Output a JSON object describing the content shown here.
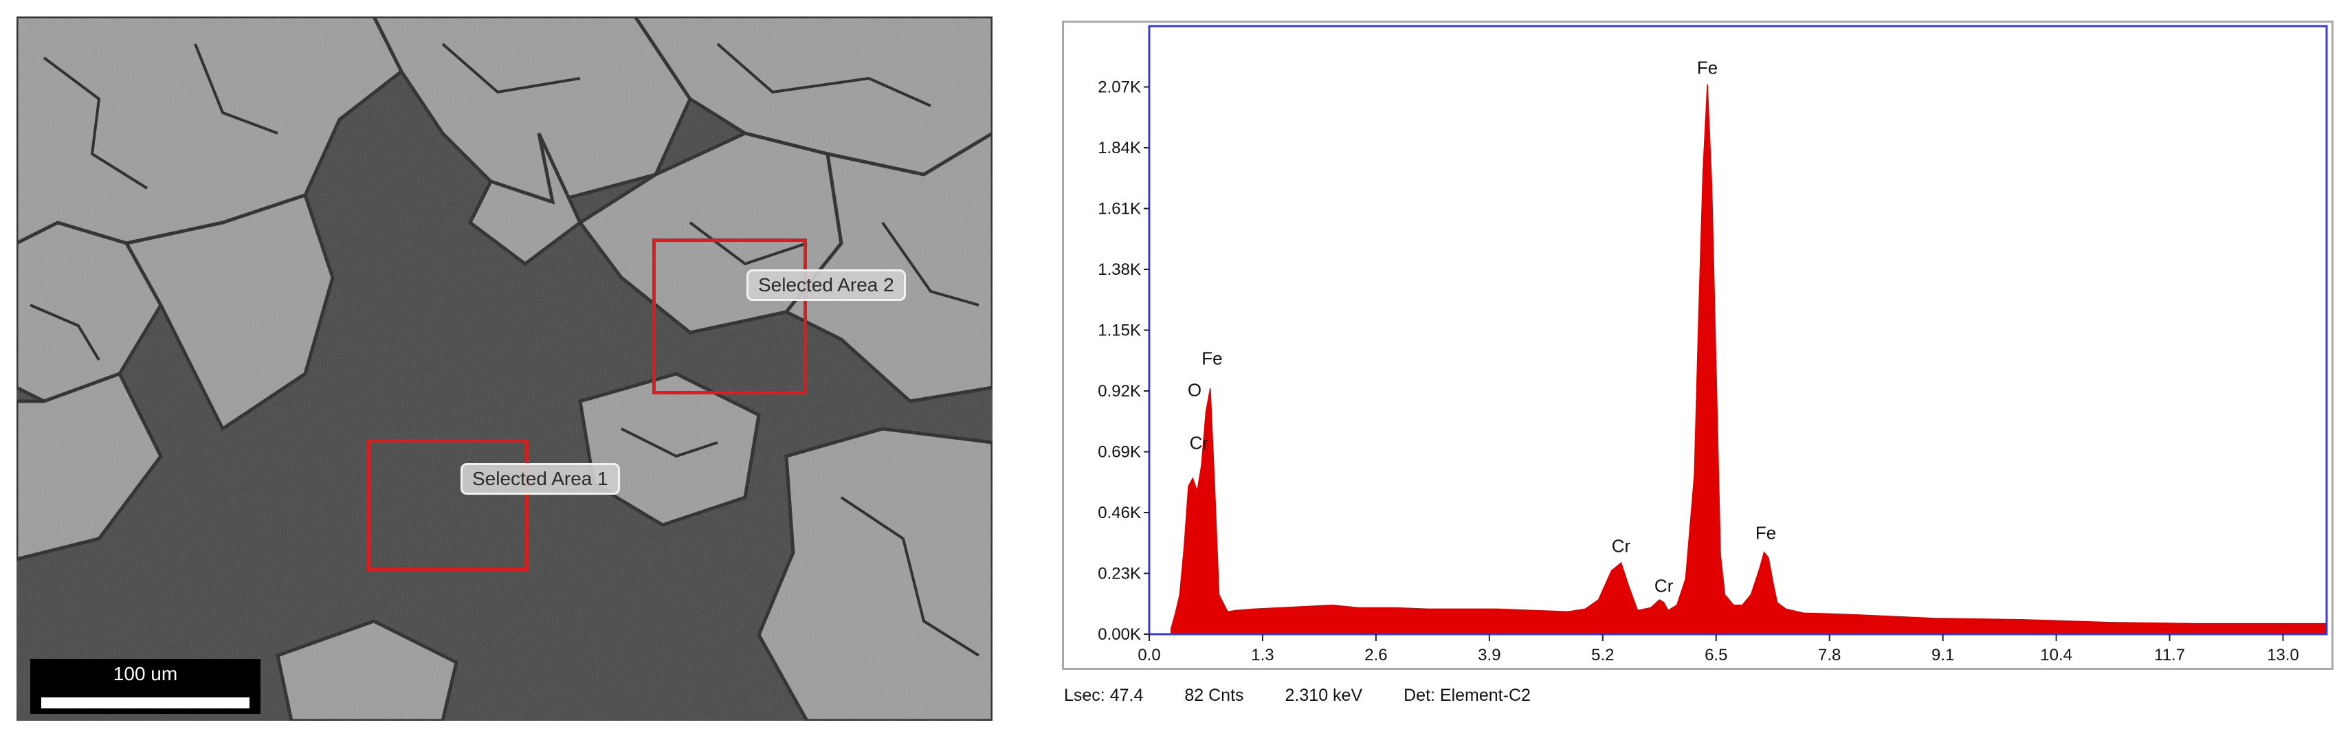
{
  "sem_image": {
    "selected_areas": [
      {
        "label": "Selected Area 1"
      },
      {
        "label": "Selected Area 2"
      }
    ],
    "scale_bar": {
      "label": "100 um"
    },
    "accent_color": "#d81e1e"
  },
  "chart_data": {
    "type": "area",
    "title": "",
    "xlabel": "",
    "ylabel": "",
    "xlim": [
      0.0,
      13.5
    ],
    "ylim": [
      0,
      2300
    ],
    "x_ticks": [
      0.0,
      1.3,
      2.6,
      3.9,
      5.2,
      6.5,
      7.8,
      9.1,
      10.4,
      11.7,
      13.0
    ],
    "x_tick_labels": [
      "0.0",
      "1.3",
      "2.6",
      "3.9",
      "5.2",
      "6.5",
      "7.8",
      "9.1",
      "10.4",
      "11.7",
      "13.0"
    ],
    "y_ticks": [
      0,
      230,
      460,
      690,
      920,
      1150,
      1380,
      1610,
      1840,
      2070
    ],
    "y_tick_labels": [
      "0.00K",
      "0.23K",
      "0.46K",
      "0.69K",
      "0.92K",
      "1.15K",
      "1.38K",
      "1.61K",
      "1.84K",
      "2.07K"
    ],
    "grid": false,
    "fill_color": "#e00000",
    "frame_color": "#3a3ad0",
    "series": [
      {
        "x": [
          0.25,
          0.3,
          0.35,
          0.4,
          0.45,
          0.5,
          0.55,
          0.6,
          0.65,
          0.7,
          0.75,
          0.8,
          0.9,
          1.0,
          1.2,
          1.5,
          1.8,
          2.1,
          2.4,
          2.8,
          3.2,
          3.6,
          4.0,
          4.4,
          4.8,
          5.0,
          5.15,
          5.3,
          5.41,
          5.5,
          5.6,
          5.75,
          5.85,
          5.9,
          5.95,
          6.05,
          6.15,
          6.25,
          6.3,
          6.35,
          6.4,
          6.45,
          6.5,
          6.55,
          6.6,
          6.7,
          6.8,
          6.9,
          7.0,
          7.05,
          7.1,
          7.15,
          7.2,
          7.3,
          7.5,
          8.0,
          9.0,
          10.0,
          11.0,
          12.0,
          13.0,
          13.5
        ],
        "y": [
          20,
          80,
          150,
          330,
          560,
          590,
          540,
          640,
          840,
          930,
          560,
          150,
          85,
          90,
          95,
          100,
          105,
          110,
          100,
          100,
          95,
          95,
          95,
          90,
          85,
          95,
          130,
          240,
          270,
          180,
          90,
          100,
          130,
          120,
          90,
          110,
          210,
          600,
          1200,
          1750,
          2080,
          1700,
          1000,
          300,
          150,
          110,
          110,
          150,
          250,
          310,
          290,
          200,
          120,
          95,
          80,
          75,
          60,
          55,
          45,
          40,
          40,
          40
        ]
      }
    ],
    "peak_labels": [
      {
        "text": "O",
        "x": 0.52,
        "y": 900
      },
      {
        "text": "Cr",
        "x": 0.57,
        "y": 700
      },
      {
        "text": "Fe",
        "x": 0.72,
        "y": 1020
      },
      {
        "text": "Cr",
        "x": 5.41,
        "y": 310
      },
      {
        "text": "Cr",
        "x": 5.9,
        "y": 160
      },
      {
        "text": "Fe",
        "x": 6.4,
        "y": 2120
      },
      {
        "text": "Fe",
        "x": 7.07,
        "y": 360
      }
    ]
  },
  "status_bar": {
    "lsec": "Lsec: 47.4",
    "counts": "82 Cnts",
    "energy": "2.310 keV",
    "detector": "Det: Element-C2"
  }
}
